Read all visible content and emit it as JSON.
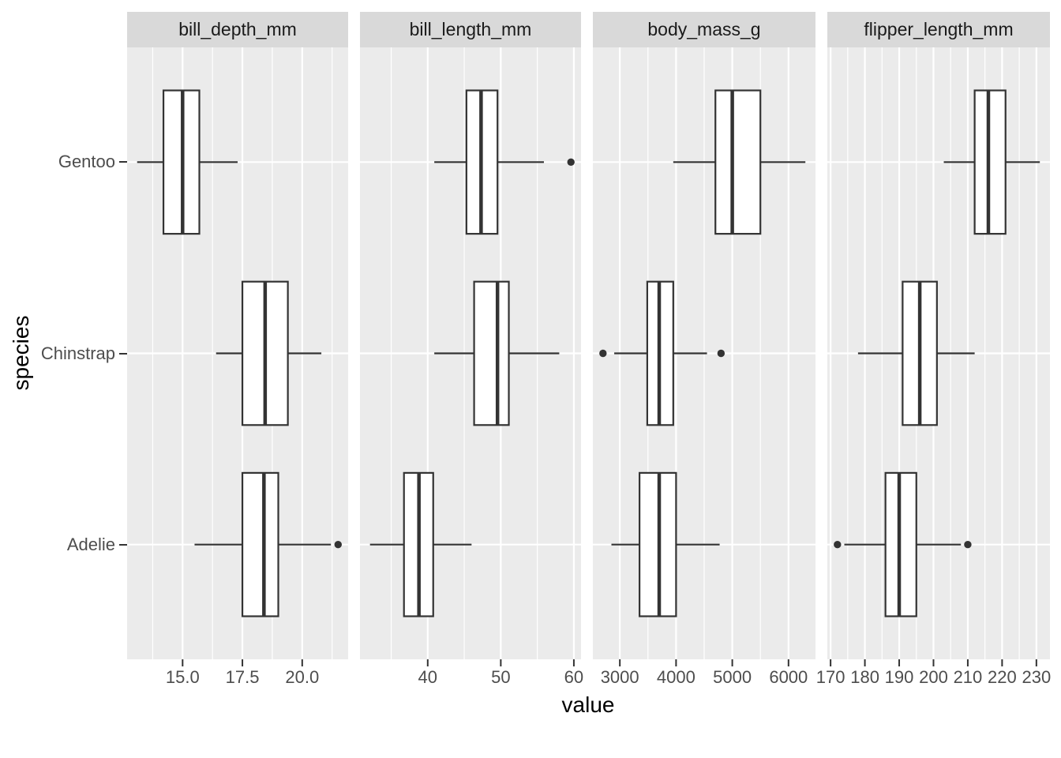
{
  "chart_data": {
    "type": "boxplot",
    "orientation": "horizontal",
    "xlabel": "value",
    "ylabel": "species",
    "grid": "on",
    "legend": "none",
    "facet_scales": "free_x",
    "y_categories_top_to_bottom": [
      "Gentoo",
      "Chinstrap",
      "Adelie"
    ],
    "facets": [
      {
        "label": "bill_depth_mm",
        "xlim": [
          12.68,
          21.92
        ],
        "major_ticks": [
          15.0,
          17.5,
          20.0
        ],
        "tick_labels": [
          "15.0",
          "17.5",
          "20.0"
        ],
        "minor_ticks": [
          13.75,
          16.25,
          18.75,
          21.25
        ],
        "boxes": {
          "Gentoo": {
            "whisker_lo": 13.1,
            "q1": 14.2,
            "median": 15.0,
            "q3": 15.7,
            "whisker_hi": 17.3,
            "outliers": []
          },
          "Chinstrap": {
            "whisker_lo": 16.4,
            "q1": 17.5,
            "median": 18.45,
            "q3": 19.4,
            "whisker_hi": 20.8,
            "outliers": []
          },
          "Adelie": {
            "whisker_lo": 15.5,
            "q1": 17.5,
            "median": 18.4,
            "q3": 19.0,
            "whisker_hi": 21.2,
            "outliers": [
              21.5
            ]
          }
        }
      },
      {
        "label": "bill_length_mm",
        "xlim": [
          30.73,
          60.98
        ],
        "major_ticks": [
          40,
          50,
          60
        ],
        "tick_labels": [
          "40",
          "50",
          "60"
        ],
        "minor_ticks": [
          35,
          45,
          55
        ],
        "boxes": {
          "Gentoo": {
            "whisker_lo": 40.9,
            "q1": 45.3,
            "median": 47.3,
            "q3": 49.55,
            "whisker_hi": 55.9,
            "outliers": [
              59.6
            ]
          },
          "Chinstrap": {
            "whisker_lo": 40.9,
            "q1": 46.35,
            "median": 49.55,
            "q3": 51.1,
            "whisker_hi": 58.0,
            "outliers": []
          },
          "Adelie": {
            "whisker_lo": 32.1,
            "q1": 36.75,
            "median": 38.8,
            "q3": 40.75,
            "whisker_hi": 46.0,
            "outliers": []
          }
        }
      },
      {
        "label": "body_mass_g",
        "xlim": [
          2520,
          6480
        ],
        "major_ticks": [
          3000,
          4000,
          5000,
          6000
        ],
        "tick_labels": [
          "3000",
          "4000",
          "5000",
          "6000"
        ],
        "minor_ticks": [
          3500,
          4500,
          5500
        ],
        "boxes": {
          "Gentoo": {
            "whisker_lo": 3950,
            "q1": 4700,
            "median": 5000,
            "q3": 5500,
            "whisker_hi": 6300,
            "outliers": []
          },
          "Chinstrap": {
            "whisker_lo": 2900,
            "q1": 3487.5,
            "median": 3700,
            "q3": 3950,
            "whisker_hi": 4550,
            "outliers": [
              2700,
              4800
            ]
          },
          "Adelie": {
            "whisker_lo": 2850,
            "q1": 3350,
            "median": 3700,
            "q3": 4000,
            "whisker_hi": 4775,
            "outliers": []
          }
        }
      },
      {
        "label": "flipper_length_mm",
        "xlim": [
          169.05,
          233.95
        ],
        "major_ticks": [
          170,
          180,
          190,
          200,
          210,
          220,
          230
        ],
        "tick_labels": [
          "170",
          "180",
          "190",
          "200",
          "210",
          "220",
          "230"
        ],
        "minor_ticks": [
          175,
          185,
          195,
          205,
          215,
          225
        ],
        "boxes": {
          "Gentoo": {
            "whisker_lo": 203,
            "q1": 212,
            "median": 216,
            "q3": 221,
            "whisker_hi": 231,
            "outliers": []
          },
          "Chinstrap": {
            "whisker_lo": 178,
            "q1": 191,
            "median": 196,
            "q3": 201,
            "whisker_hi": 212,
            "outliers": []
          },
          "Adelie": {
            "whisker_lo": 174,
            "q1": 186,
            "median": 190,
            "q3": 195,
            "whisker_hi": 208,
            "outliers": [
              172,
              210
            ]
          }
        }
      }
    ],
    "style": {
      "panel_bg": "#EBEBEB",
      "strip_bg": "#D9D9D9",
      "grid_color": "#FFFFFF",
      "box_stroke": "#333333",
      "box_fill": "#FFFFFF",
      "tick_color": "#333333",
      "tick_label_color": "#4D4D4D",
      "strip_text_color": "#1A1A1A",
      "axis_title_color": "#000000"
    }
  }
}
